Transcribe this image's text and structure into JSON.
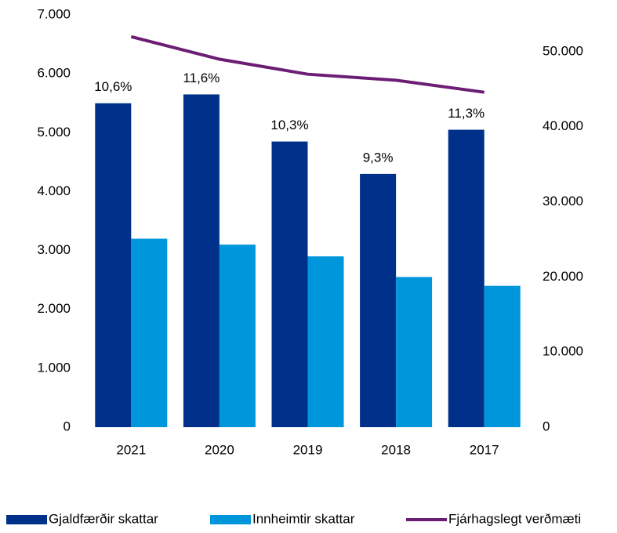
{
  "chart_data": {
    "type": "bar_line",
    "categories": [
      "2021",
      "2020",
      "2019",
      "2018",
      "2017"
    ],
    "series": [
      {
        "name": "Gjaldfærðir skattar",
        "color": "#00318a",
        "type": "bar",
        "values": [
          5500,
          5650,
          4850,
          4300,
          5050
        ]
      },
      {
        "name": "Innheimtir skattar",
        "color": "#0096db",
        "type": "bar",
        "values": [
          3200,
          3100,
          2900,
          2550,
          2400
        ]
      },
      {
        "name": "Fjárhagslegt verðmæti",
        "color": "#6b1e74",
        "type": "line",
        "axis": "y2",
        "values": [
          52000,
          49000,
          47000,
          46200,
          44600
        ]
      }
    ],
    "annotations": [
      "10,6%",
      "11,6%",
      "10,3%",
      "9,3%",
      "11,3%"
    ],
    "ylim": [
      0,
      7000
    ],
    "yticks": [
      0,
      {
        "value": 1000,
        "label": "1.000"
      },
      {
        "value": 2000,
        "label": "2.000"
      },
      {
        "value": 3000,
        "label": "3.000"
      },
      {
        "value": 4000,
        "label": "4.000"
      },
      {
        "value": 5000,
        "label": "5.000"
      },
      {
        "value": 6000,
        "label": "6.000"
      },
      {
        "value": 7000,
        "label": "7.000"
      }
    ],
    "y2lim": [
      0,
      54900
    ],
    "y2ticks": [
      0,
      {
        "value": 10000,
        "label": "10.000"
      },
      {
        "value": 20000,
        "label": "20.000"
      },
      {
        "value": 30000,
        "label": "30.000"
      },
      {
        "value": 40000,
        "label": "40.000"
      },
      {
        "value": 50000,
        "label": "50.000"
      }
    ],
    "legend": "bottom"
  }
}
